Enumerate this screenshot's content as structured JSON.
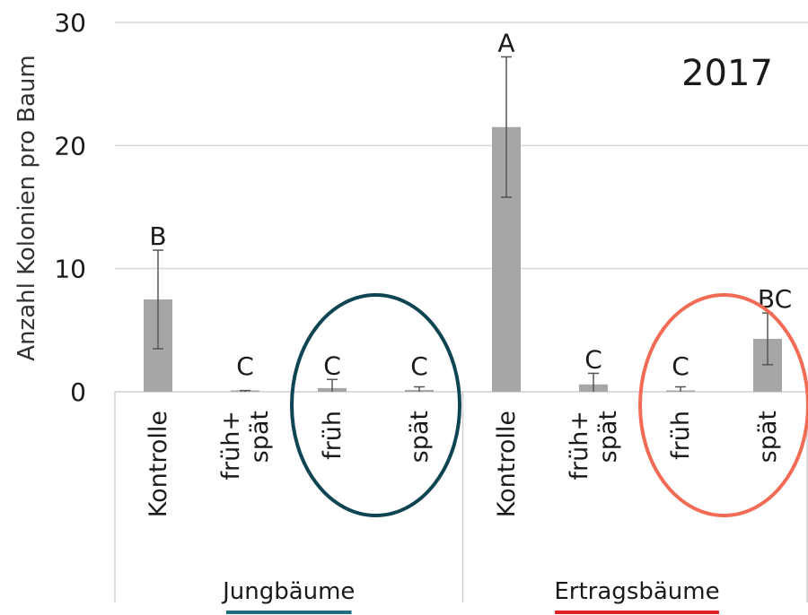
{
  "chart_data": {
    "type": "bar",
    "title": "2017",
    "ylabel": "Anzahl Kolonien pro Baum",
    "xlabel": "",
    "ylim": [
      0,
      30
    ],
    "yticks": [
      0,
      10,
      20,
      30
    ],
    "grid": true,
    "groups": [
      {
        "name": "Jungbäume",
        "underline_color": "#1f6e80",
        "bars": [
          {
            "category": "Kontrolle",
            "value": 7.5,
            "err_low": 3.5,
            "err_high": 11.5,
            "letter": "B"
          },
          {
            "category": "früh+\nspät",
            "value": 0.05,
            "err_low": 0.0,
            "err_high": 0.1,
            "letter": "C"
          },
          {
            "category": "früh",
            "value": 0.3,
            "err_low": 0.0,
            "err_high": 1.0,
            "letter": "C"
          },
          {
            "category": "spät",
            "value": 0.15,
            "err_low": 0.0,
            "err_high": 0.4,
            "letter": "C"
          }
        ]
      },
      {
        "name": "Ertragsbäume",
        "underline_color": "#e02020",
        "bars": [
          {
            "category": "Kontrolle",
            "value": 21.5,
            "err_low": 15.8,
            "err_high": 27.2,
            "letter": "A"
          },
          {
            "category": "früh+\nspät",
            "value": 0.6,
            "err_low": 0.0,
            "err_high": 1.5,
            "letter": "C"
          },
          {
            "category": "früh",
            "value": 0.1,
            "err_low": 0.0,
            "err_high": 0.4,
            "letter": "C"
          },
          {
            "category": "spät",
            "value": 4.3,
            "err_low": 2.2,
            "err_high": 6.4,
            "letter": "BC"
          }
        ]
      }
    ],
    "highlights": [
      {
        "group": 0,
        "from_bar": 2,
        "to_bar": 3,
        "color": "#0e4552"
      },
      {
        "group": 1,
        "from_bar": 2,
        "to_bar": 3,
        "color": "#f26b55"
      }
    ],
    "colors": {
      "bar": "#a6a6a6",
      "grid": "#d9d9d9",
      "axis": "#d0d0d0",
      "errorbar": "#555555"
    }
  }
}
